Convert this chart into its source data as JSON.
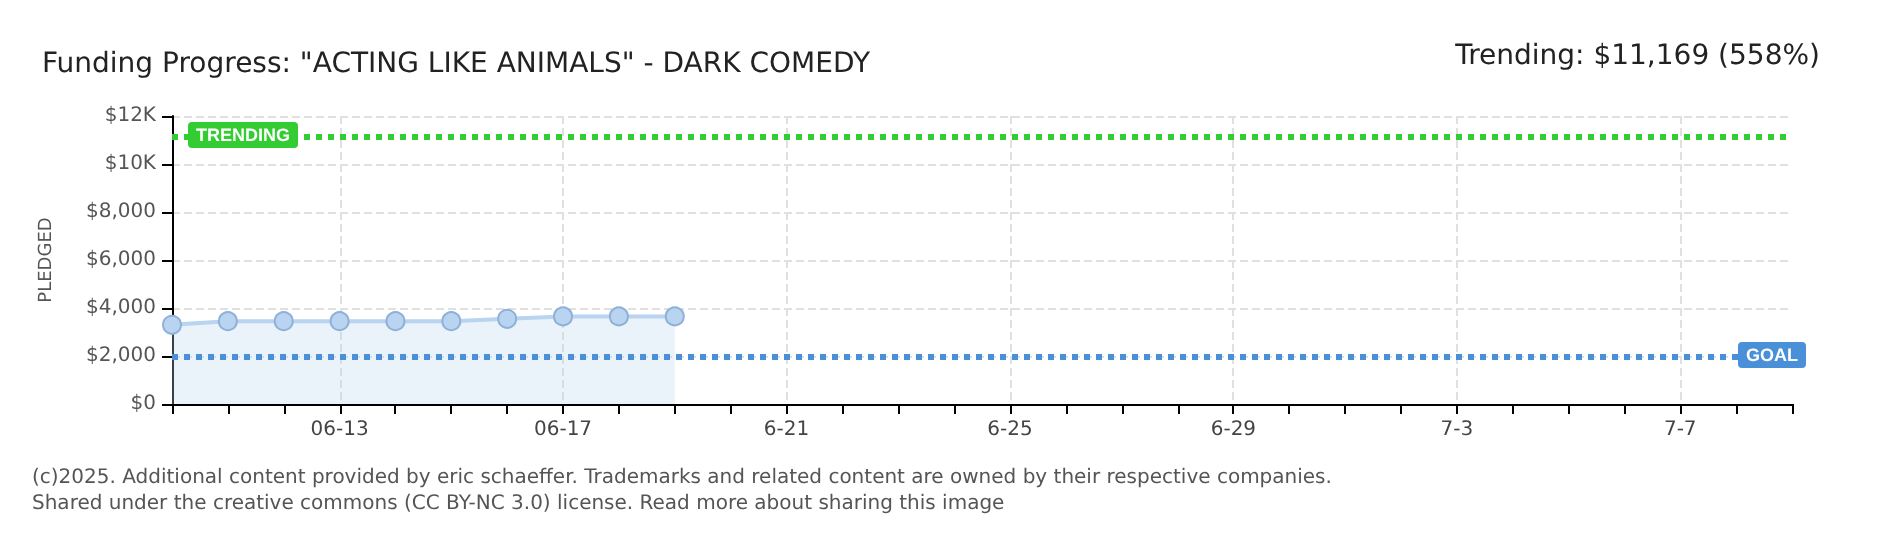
{
  "chart_data": {
    "type": "area",
    "title": "Funding Progress: \"ACTING LIKE ANIMALS\" - DARK COMEDY",
    "ylabel": "PLEDGED",
    "annotations": [
      "Trending: $11,169 (558%)",
      "(c)2025. Additional content provided by eric schaeffer. Trademarks and related content are owned by their respective companies.",
      "Shared under the creative commons (CC BY-NC 3.0) license. Read more about sharing this image"
    ],
    "categories": [
      null,
      null,
      null,
      "06-13",
      null,
      null,
      null,
      "06-17",
      null,
      null,
      null,
      "6-21",
      null,
      null,
      null,
      "6-25",
      null,
      null,
      null,
      "6-29",
      null,
      null,
      null,
      "7-3",
      null,
      null,
      null,
      "7-7",
      null,
      null
    ],
    "series": [
      {
        "color": "#b8d4f0",
        "values": [
          3300,
          3450,
          3450,
          3450,
          3450,
          3450,
          3550,
          3650,
          3650,
          3650,
          null,
          null,
          null,
          null,
          null,
          null,
          null,
          null,
          null,
          null,
          null,
          null,
          null,
          null,
          null,
          null,
          null,
          null,
          null,
          null
        ]
      }
    ],
    "ylim": [
      0,
      12000
    ],
    "yticks": [
      {
        "value": 0,
        "label": "$0"
      },
      {
        "value": 2000,
        "label": "$2,000"
      },
      {
        "value": 4000,
        "label": "$4,000"
      },
      {
        "value": 6000,
        "label": "$6,000"
      },
      {
        "value": 8000,
        "label": "$8,000"
      },
      {
        "value": 10000,
        "label": "$10K"
      },
      {
        "value": 12000,
        "label": "$12K"
      }
    ],
    "ref_lines": [
      {
        "axis": "y",
        "value": 11169,
        "label": "TRENDING",
        "color": "#33cc33",
        "line_style": "dotted"
      },
      {
        "axis": "y",
        "value": 2000,
        "label": "GOAL",
        "color": "#4a90d9",
        "line_style": "dotted"
      }
    ],
    "grid": true,
    "marker": "circle",
    "line_style": "solid"
  }
}
